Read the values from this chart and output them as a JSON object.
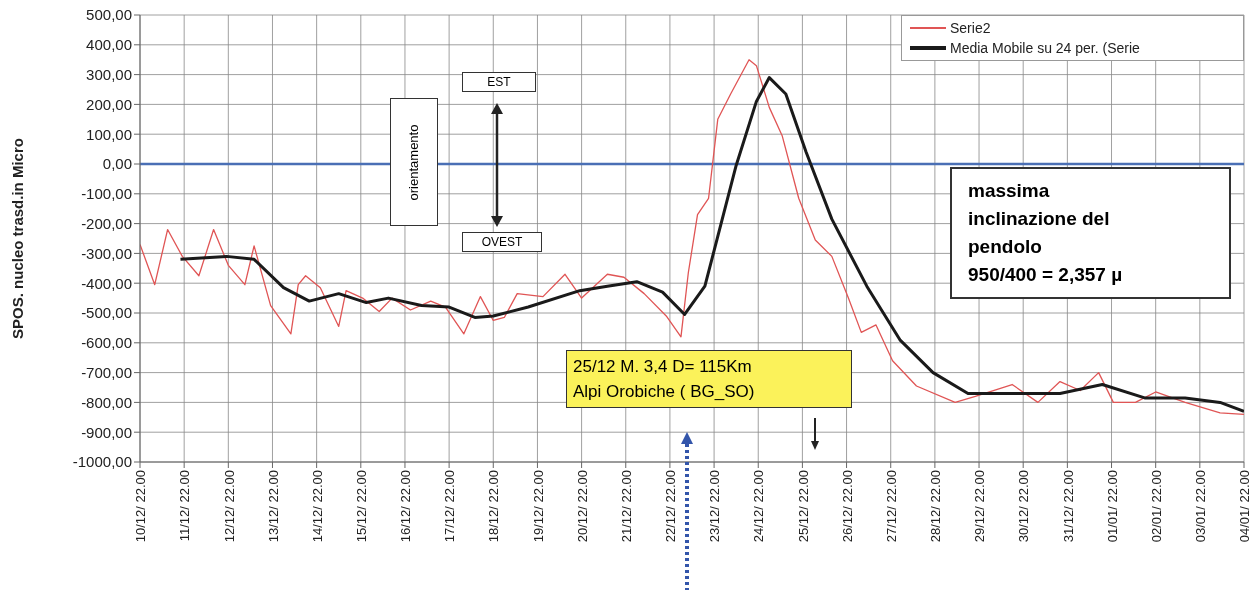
{
  "chart_data": {
    "type": "line",
    "ylabel": "SPOS. nucleo trasd.in Micro",
    "xlim": [
      "2000-12-10T22:00",
      "2001-01-04T22:00"
    ],
    "ylim": [
      -1000,
      500
    ],
    "xticks": [
      {
        "value": "2000-12-10T22:00",
        "label": "10/12/ 22.00"
      },
      {
        "value": "2000-12-11T22:00",
        "label": "11/12/ 22.00"
      },
      {
        "value": "2000-12-12T22:00",
        "label": "12/12/ 22.00"
      },
      {
        "value": "2000-12-13T22:00",
        "label": "13/12/ 22.00"
      },
      {
        "value": "2000-12-14T22:00",
        "label": "14/12/ 22.00"
      },
      {
        "value": "2000-12-15T22:00",
        "label": "15/12/ 22.00"
      },
      {
        "value": "2000-12-16T22:00",
        "label": "16/12/ 22.00"
      },
      {
        "value": "2000-12-17T22:00",
        "label": "17/12/ 22.00"
      },
      {
        "value": "2000-12-18T22:00",
        "label": "18/12/ 22.00"
      },
      {
        "value": "2000-12-19T22:00",
        "label": "19/12/ 22.00"
      },
      {
        "value": "2000-12-20T22:00",
        "label": "20/12/ 22.00"
      },
      {
        "value": "2000-12-21T22:00",
        "label": "21/12/ 22.00"
      },
      {
        "value": "2000-12-22T22:00",
        "label": "22/12/ 22.00"
      },
      {
        "value": "2000-12-23T22:00",
        "label": "23/12/ 22.00"
      },
      {
        "value": "2000-12-24T22:00",
        "label": "24/12/ 22.00"
      },
      {
        "value": "2000-12-25T22:00",
        "label": "25/12/ 22.00"
      },
      {
        "value": "2000-12-26T22:00",
        "label": "26/12/ 22.00"
      },
      {
        "value": "2000-12-27T22:00",
        "label": "27/12/ 22.00"
      },
      {
        "value": "2000-12-28T22:00",
        "label": "28/12/ 22.00"
      },
      {
        "value": "2000-12-29T22:00",
        "label": "29/12/ 22.00"
      },
      {
        "value": "2000-12-30T22:00",
        "label": "30/12/ 22.00"
      },
      {
        "value": "2000-12-31T22:00",
        "label": "31/12/ 22.00"
      },
      {
        "value": "2001-01-01T22:00",
        "label": "01/01/ 22.00"
      },
      {
        "value": "2001-01-02T22:00",
        "label": "02/01/ 22.00"
      },
      {
        "value": "2001-01-03T22:00",
        "label": "03/01/ 22.00"
      },
      {
        "value": "2001-01-04T22:00",
        "label": "04/01/ 22.00"
      }
    ],
    "yticks": [
      {
        "value": 500,
        "label": "500,00"
      },
      {
        "value": 400,
        "label": "400,00"
      },
      {
        "value": 300,
        "label": "300,00"
      },
      {
        "value": 200,
        "label": "200,00"
      },
      {
        "value": 100,
        "label": "100,00"
      },
      {
        "value": 0,
        "label": "0,00"
      },
      {
        "value": -100,
        "label": "-100,00"
      },
      {
        "value": -200,
        "label": "-200,00"
      },
      {
        "value": -300,
        "label": "-300,00"
      },
      {
        "value": -400,
        "label": "-400,00"
      },
      {
        "value": -500,
        "label": "-500,00"
      },
      {
        "value": -600,
        "label": "-600,00"
      },
      {
        "value": -700,
        "label": "-700,00"
      },
      {
        "value": -800,
        "label": "-800,00"
      },
      {
        "value": -900,
        "label": "-900,00"
      },
      {
        "value": -1000,
        "label": "-1000,00"
      }
    ],
    "grid": true,
    "legend": "top right",
    "marker": "none",
    "line_style": "solid",
    "ref_lines": [
      {
        "axis": "y",
        "value": 0,
        "color": "#4a6fb5"
      }
    ],
    "annotations": [
      "EST",
      "OVEST",
      "orientamento",
      "massima\ninclinazione del\npendolo\n950/400 = 2,357 µ",
      "25/12 M. 3,4 D= 115Km\nAlpi Orobiche ( BG_SO)"
    ],
    "series": [
      {
        "name": "Serie2",
        "color": "#e05555",
        "x": [
          "2000-12-10T22:00",
          "2000-12-11T06:00",
          "2000-12-11T13:00",
          "2000-12-11T21:00",
          "2000-12-12T06:00",
          "2000-12-12T14:00",
          "2000-12-12T22:00",
          "2000-12-13T07:00",
          "2000-12-13T12:00",
          "2000-12-13T21:00",
          "2000-12-14T08:00",
          "2000-12-14T12:00",
          "2000-12-14T16:00",
          "2000-12-15T00:00",
          "2000-12-15T10:00",
          "2000-12-15T14:00",
          "2000-12-15T23:00",
          "2000-12-16T08:00",
          "2000-12-16T15:00",
          "2000-12-17T01:00",
          "2000-12-17T12:00",
          "2000-12-17T20:00",
          "2000-12-18T06:00",
          "2000-12-18T15:00",
          "2000-12-18T22:00",
          "2000-12-19T04:00",
          "2000-12-19T11:00",
          "2000-12-20T01:00",
          "2000-12-20T13:00",
          "2000-12-20T22:00",
          "2000-12-21T12:00",
          "2000-12-21T21:00",
          "2000-12-22T08:00",
          "2000-12-22T20:00",
          "2000-12-23T04:00",
          "2000-12-23T08:00",
          "2000-12-23T13:00",
          "2000-12-23T19:00",
          "2000-12-24T00:00",
          "2000-12-24T07:00",
          "2000-12-24T17:00",
          "2000-12-24T21:00",
          "2000-12-25T04:00",
          "2000-12-25T11:00",
          "2000-12-25T20:00",
          "2000-12-26T05:00",
          "2000-12-26T14:00",
          "2000-12-26T23:00",
          "2000-12-27T06:00",
          "2000-12-27T14:00",
          "2000-12-27T23:00",
          "2000-12-28T12:00",
          "2000-12-29T09:00",
          "2000-12-29T20:00",
          "2000-12-30T16:00",
          "2000-12-31T06:00",
          "2000-12-31T18:00",
          "2001-01-01T05:00",
          "2001-01-01T15:00",
          "2001-01-01T23:00",
          "2001-01-02T11:00",
          "2001-01-02T22:00",
          "2001-01-03T14:00",
          "2001-01-04T09:00",
          "2001-01-04T22:00"
        ],
        "values": [
          -270,
          -405,
          -220,
          -310,
          -375,
          -220,
          -340,
          -405,
          -275,
          -475,
          -570,
          -405,
          -375,
          -415,
          -545,
          -425,
          -450,
          -495,
          -450,
          -490,
          -460,
          -480,
          -570,
          -445,
          -525,
          -515,
          -435,
          -445,
          -370,
          -450,
          -370,
          -380,
          -435,
          -510,
          -580,
          -365,
          -170,
          -115,
          150,
          235,
          350,
          330,
          190,
          95,
          -115,
          -255,
          -310,
          -450,
          -565,
          -540,
          -660,
          -745,
          -800,
          -780,
          -740,
          -800,
          -730,
          -760,
          -700,
          -800,
          -800,
          -765,
          -800,
          -835,
          -840
        ]
      },
      {
        "name": "Media Mobile su 24 per. (Serie",
        "color": "#1a1a1a",
        "x": [
          "2000-12-11T20:00",
          "2000-12-12T21:00",
          "2000-12-13T12:00",
          "2000-12-14T04:00",
          "2000-12-14T18:00",
          "2000-12-15T10:00",
          "2000-12-16T01:00",
          "2000-12-16T13:00",
          "2000-12-17T07:00",
          "2000-12-17T22:00",
          "2000-12-18T12:00",
          "2000-12-18T22:00",
          "2000-12-19T17:00",
          "2000-12-20T21:00",
          "2000-12-21T12:00",
          "2000-12-22T04:00",
          "2000-12-22T18:00",
          "2000-12-23T06:00",
          "2000-12-23T17:00",
          "2000-12-24T10:00",
          "2000-12-24T21:00",
          "2000-12-25T04:00",
          "2000-12-25T13:00",
          "2000-12-26T00:00",
          "2000-12-26T14:00",
          "2000-12-27T09:00",
          "2000-12-28T03:00",
          "2000-12-28T21:00",
          "2000-12-29T16:00",
          "2000-12-30T19:00",
          "2000-12-31T18:00",
          "2001-01-01T17:00",
          "2001-01-02T16:00",
          "2001-01-03T14:00",
          "2001-01-04T09:00",
          "2001-01-04T22:00"
        ],
        "values": [
          -320,
          -310,
          -320,
          -415,
          -460,
          -435,
          -465,
          -450,
          -475,
          -480,
          -515,
          -510,
          -480,
          -425,
          -410,
          -395,
          -430,
          -505,
          -410,
          -5,
          210,
          290,
          235,
          40,
          -185,
          -410,
          -590,
          -700,
          -770,
          -770,
          -770,
          -740,
          -785,
          -785,
          -800,
          -830
        ]
      }
    ]
  }
}
